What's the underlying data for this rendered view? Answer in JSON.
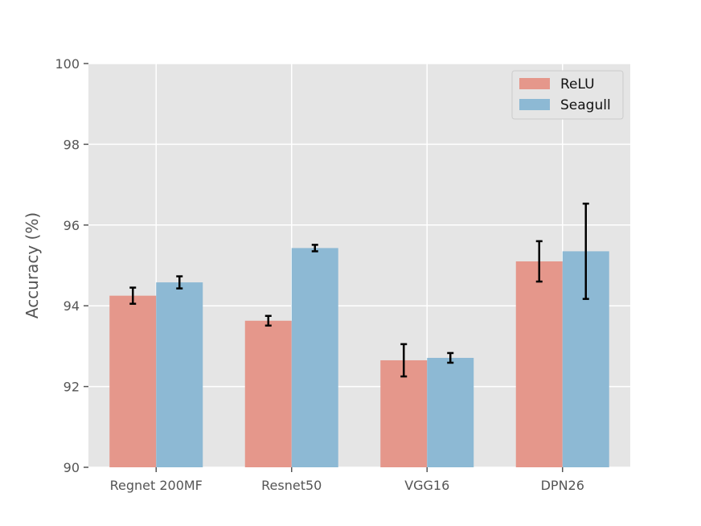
{
  "chart_data": {
    "type": "bar",
    "title": "",
    "xlabel": "",
    "ylabel": "Accuracy (%)",
    "ylim": [
      90,
      100
    ],
    "yticks": [
      "90",
      "92",
      "94",
      "96",
      "98",
      "100"
    ],
    "grid": true,
    "legend_position": "top-right",
    "categories": [
      "Regnet 200MF",
      "Resnet50",
      "VGG16",
      "DPN26"
    ],
    "series": [
      {
        "name": "ReLU",
        "color": "#e5978b",
        "values": [
          94.25,
          93.63,
          92.65,
          95.1
        ],
        "errors": [
          0.2,
          0.12,
          0.4,
          0.5
        ]
      },
      {
        "name": "Seagull",
        "color": "#8db9d4",
        "values": [
          94.58,
          95.43,
          92.71,
          95.35
        ],
        "errors": [
          0.15,
          0.08,
          0.12,
          1.18
        ]
      }
    ]
  }
}
